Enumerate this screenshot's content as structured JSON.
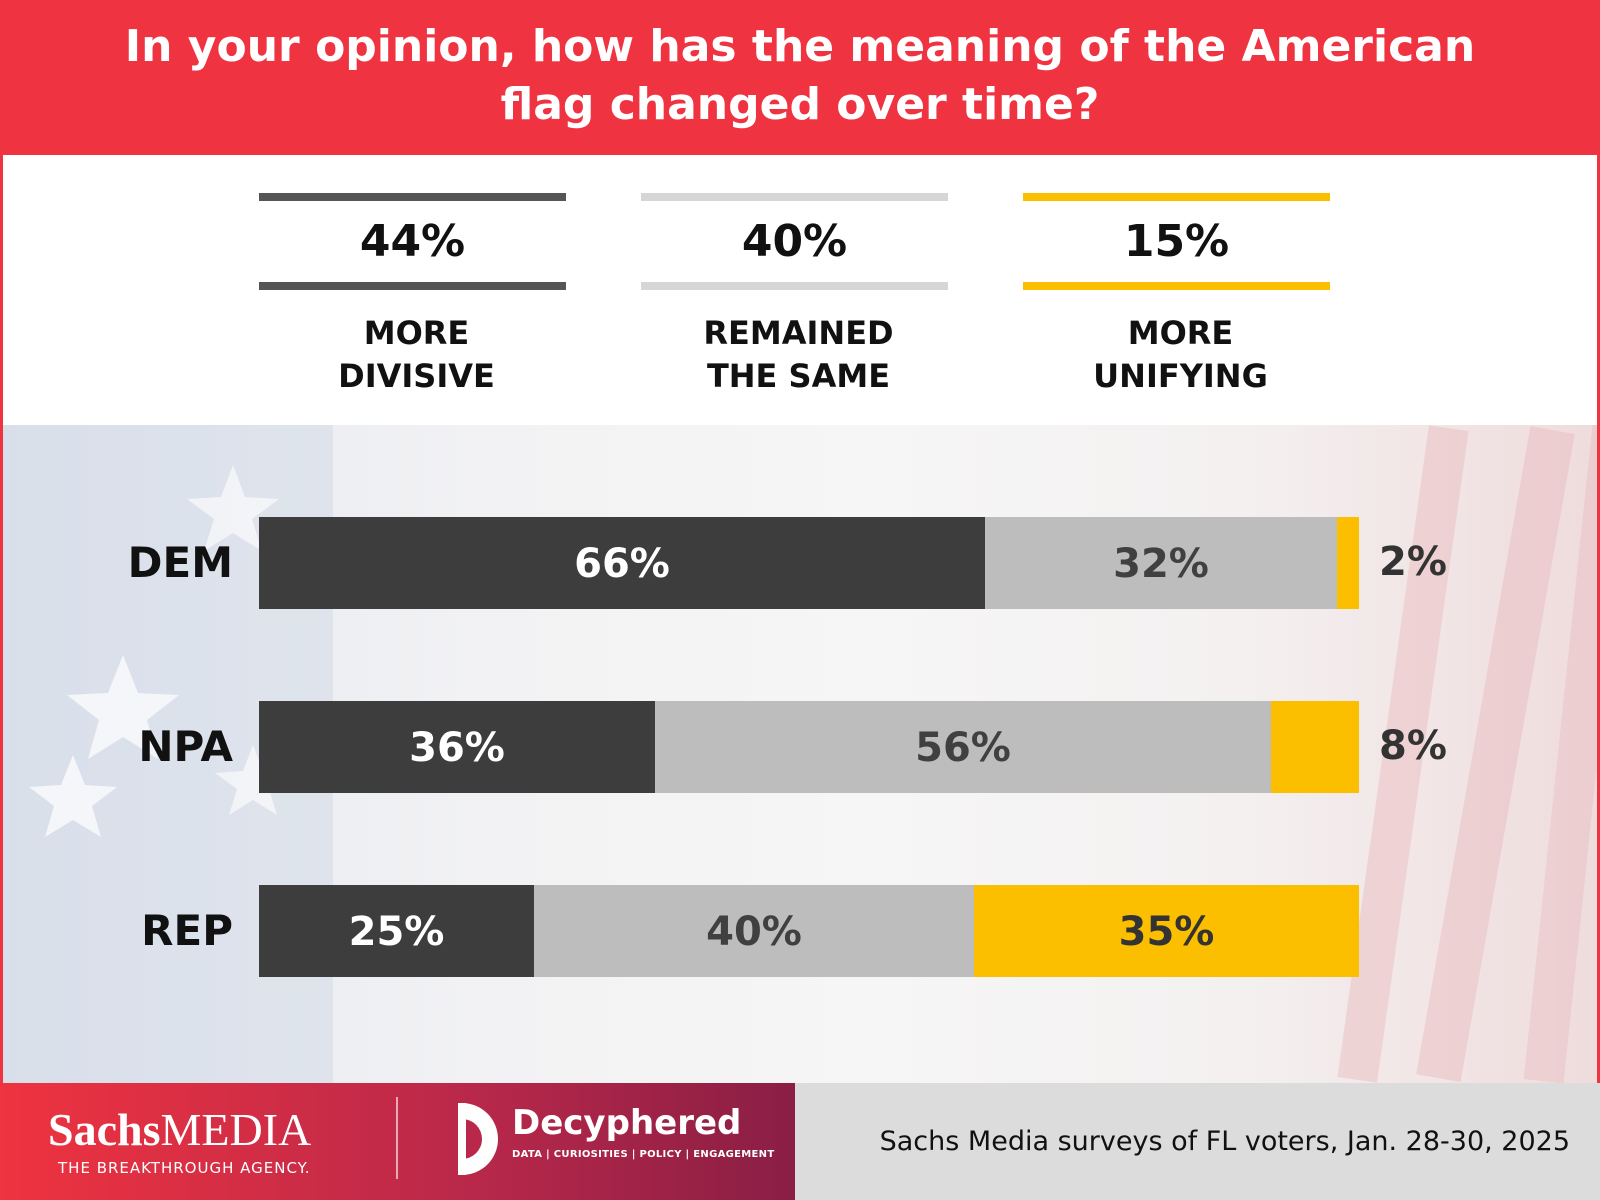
{
  "title": "In your opinion, how has the meaning of the American flag changed over time?",
  "summary": [
    {
      "pct": "44%",
      "label": "MORE\nDIVISIVE",
      "color": "#555555"
    },
    {
      "pct": "40%",
      "label": "REMAINED\nTHE SAME",
      "color": "#d6d6d6"
    },
    {
      "pct": "15%",
      "label": "MORE\nUNIFYING",
      "color": "#fbbf00"
    }
  ],
  "chart_data": {
    "type": "bar",
    "orientation": "horizontal",
    "stacked": true,
    "categories": [
      "DEM",
      "NPA",
      "REP"
    ],
    "series": [
      {
        "name": "MORE DIVISIVE",
        "values": [
          66,
          36,
          25
        ],
        "color": "#3d3d3d",
        "label_color": "#ffffff"
      },
      {
        "name": "REMAINED THE SAME",
        "values": [
          32,
          56,
          40
        ],
        "color": "#bdbdbd",
        "label_color": "#404040"
      },
      {
        "name": "MORE UNIFYING",
        "values": [
          2,
          8,
          35
        ],
        "color": "#fbbf00",
        "label_color": "#333333"
      }
    ],
    "value_suffix": "%",
    "xlim": [
      0,
      100
    ],
    "grid": false,
    "legend": "top"
  },
  "footer": {
    "brand1_bold": "Sachs",
    "brand1_light": "MEDIA",
    "brand1_tagline": "THE BREAKTHROUGH AGENCY.",
    "brand2_name": "Decyphered",
    "brand2_tagline": "DATA | CURIOSITIES | POLICY | ENGAGEMENT",
    "source": "Sachs Media surveys of FL voters, Jan. 28-30, 2025"
  }
}
